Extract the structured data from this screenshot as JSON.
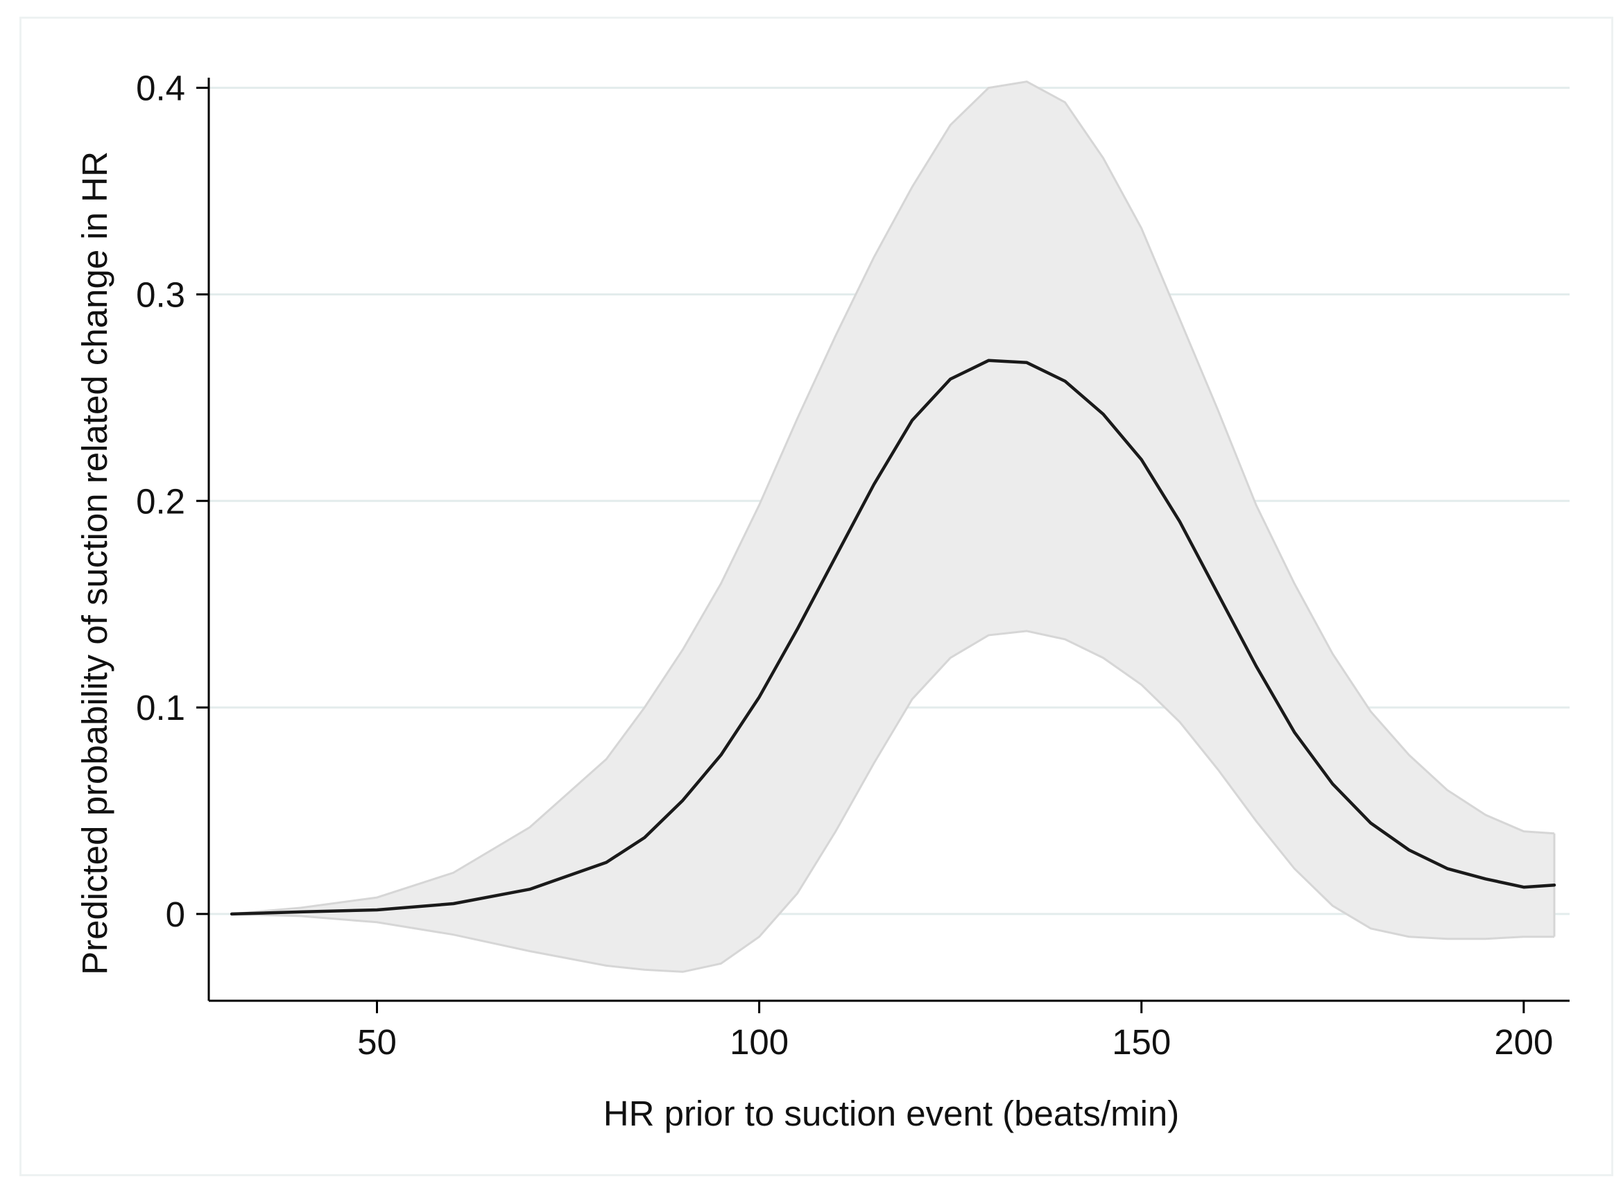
{
  "chart_data": {
    "type": "area",
    "title": "",
    "xlabel": "HR prior to suction event (beats/min)",
    "ylabel": "Predicted probability of suction related change in HR",
    "xlim": [
      28,
      206
    ],
    "ylim": [
      -0.042,
      0.415
    ],
    "xticks": [
      50,
      100,
      150,
      200
    ],
    "yticks": [
      0,
      0.1,
      0.2,
      0.3,
      0.4
    ],
    "xtick_labels": [
      "50",
      "100",
      "150",
      "200"
    ],
    "ytick_labels": [
      "0",
      "0.1",
      "0.2",
      "0.3",
      "0.4"
    ],
    "grid": "horizontal",
    "legend": "none",
    "colors": {
      "line": "#1a1a1a",
      "band_fill": "#ececec",
      "band_edge": "#d6d6d6",
      "grid": "#e3ecec"
    },
    "series": [
      {
        "x": [
          31,
          40,
          50,
          60,
          70,
          80,
          85,
          90,
          95,
          100,
          105,
          110,
          115,
          120,
          125,
          130,
          135,
          140,
          145,
          150,
          155,
          160,
          165,
          170,
          175,
          180,
          185,
          190,
          195,
          200,
          204
        ],
        "y": [
          0,
          0.001,
          0.002,
          0.005,
          0.012,
          0.025,
          0.037,
          0.055,
          0.077,
          0.105,
          0.138,
          0.173,
          0.208,
          0.239,
          0.259,
          0.268,
          0.267,
          0.258,
          0.242,
          0.22,
          0.19,
          0.155,
          0.12,
          0.088,
          0.063,
          0.044,
          0.031,
          0.022,
          0.017,
          0.013,
          0.014
        ],
        "y_lower": [
          0,
          -0.001,
          -0.004,
          -0.01,
          -0.018,
          -0.025,
          -0.027,
          -0.028,
          -0.024,
          -0.011,
          0.01,
          0.04,
          0.073,
          0.104,
          0.124,
          0.135,
          0.137,
          0.133,
          0.124,
          0.111,
          0.093,
          0.07,
          0.045,
          0.022,
          0.004,
          -0.007,
          -0.011,
          -0.012,
          -0.012,
          -0.011,
          -0.011
        ],
        "y_upper": [
          0,
          0.003,
          0.008,
          0.02,
          0.042,
          0.075,
          0.1,
          0.128,
          0.16,
          0.198,
          0.24,
          0.28,
          0.318,
          0.352,
          0.382,
          0.4,
          0.403,
          0.393,
          0.366,
          0.332,
          0.288,
          0.244,
          0.198,
          0.16,
          0.126,
          0.098,
          0.077,
          0.06,
          0.048,
          0.04,
          0.039
        ]
      }
    ]
  }
}
